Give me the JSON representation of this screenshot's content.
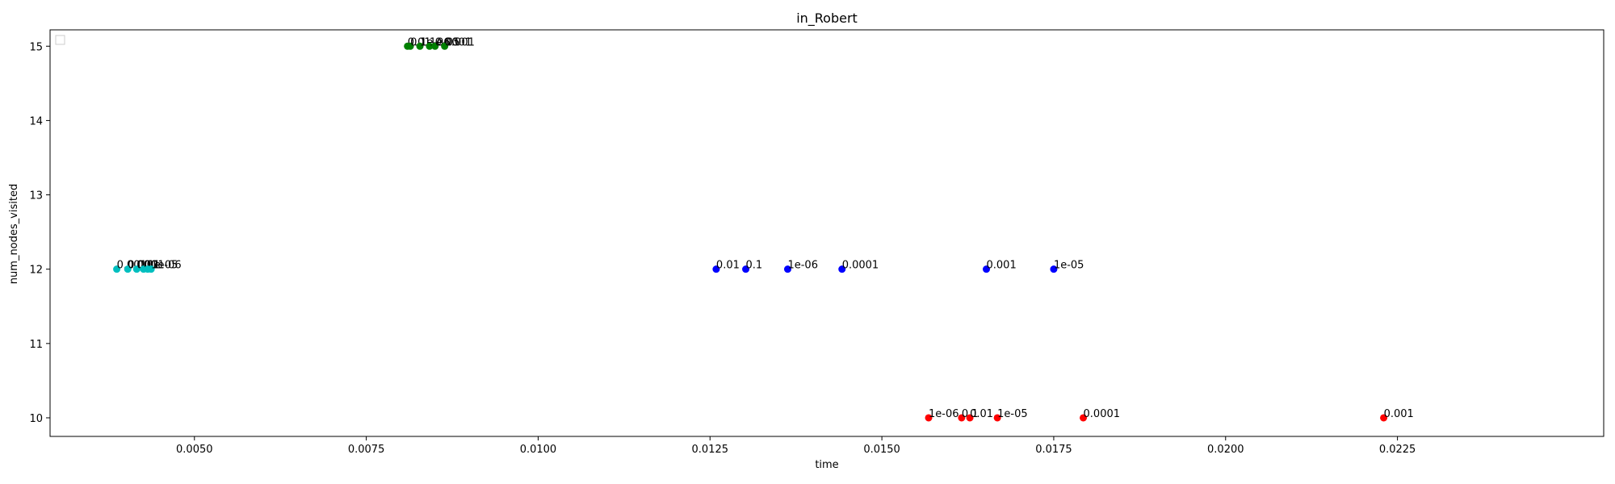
{
  "chart_data": {
    "type": "scatter",
    "title": "in_Robert",
    "xlabel": "time",
    "ylabel": "num_nodes_visited",
    "xlim": [
      0.0029,
      0.0255
    ],
    "ylim": [
      9.75,
      15.22
    ],
    "x_ticks": [
      0.005,
      0.0075,
      0.01,
      0.0125,
      0.015,
      0.0175,
      0.02,
      0.0225
    ],
    "x_tick_labels": [
      "0.0050",
      "0.0075",
      "0.0100",
      "0.0125",
      "0.0150",
      "0.0175",
      "0.0200",
      "0.0225"
    ],
    "y_ticks": [
      10,
      11,
      12,
      13,
      14,
      15
    ],
    "y_tick_labels": [
      "10",
      "11",
      "12",
      "13",
      "14",
      "15"
    ],
    "grid": false,
    "legend": {
      "placement": "upper-left",
      "entries": []
    },
    "series": [
      {
        "color": "#00bfbf",
        "points": [
          {
            "x": 0.00387,
            "y": 12,
            "label": "0.001"
          },
          {
            "x": 0.00403,
            "y": 12,
            "label": "0.0001"
          },
          {
            "x": 0.00416,
            "y": 12,
            "label": "0.01"
          },
          {
            "x": 0.00426,
            "y": 12,
            "label": "0.1"
          },
          {
            "x": 0.00432,
            "y": 12,
            "label": "1e-05"
          },
          {
            "x": 0.00437,
            "y": 12,
            "label": "1e-06"
          }
        ]
      },
      {
        "color": "#008000",
        "points": [
          {
            "x": 0.0081,
            "y": 15,
            "label": "0.01"
          },
          {
            "x": 0.00814,
            "y": 15,
            "label": "0.1"
          },
          {
            "x": 0.00828,
            "y": 15,
            "label": "1e-06"
          },
          {
            "x": 0.00842,
            "y": 15,
            "label": "1e-05"
          },
          {
            "x": 0.0085,
            "y": 15,
            "label": "0.0001"
          },
          {
            "x": 0.00864,
            "y": 15,
            "label": "0.001"
          }
        ]
      },
      {
        "color": "#0000ff",
        "points": [
          {
            "x": 0.01259,
            "y": 12,
            "label": "0.01"
          },
          {
            "x": 0.01302,
            "y": 12,
            "label": "0.1"
          },
          {
            "x": 0.01363,
            "y": 12,
            "label": "1e-06"
          },
          {
            "x": 0.01442,
            "y": 12,
            "label": "0.0001"
          },
          {
            "x": 0.01652,
            "y": 12,
            "label": "0.001"
          },
          {
            "x": 0.0175,
            "y": 12,
            "label": "1e-05"
          }
        ]
      },
      {
        "color": "#ff0000",
        "points": [
          {
            "x": 0.01568,
            "y": 10,
            "label": "1e-06"
          },
          {
            "x": 0.01616,
            "y": 10,
            "label": "0.1"
          },
          {
            "x": 0.01628,
            "y": 10,
            "label": "0.01"
          },
          {
            "x": 0.01668,
            "y": 10,
            "label": "1e-05"
          },
          {
            "x": 0.01793,
            "y": 10,
            "label": "0.0001"
          },
          {
            "x": 0.0223,
            "y": 10,
            "label": "0.001"
          }
        ]
      }
    ]
  }
}
